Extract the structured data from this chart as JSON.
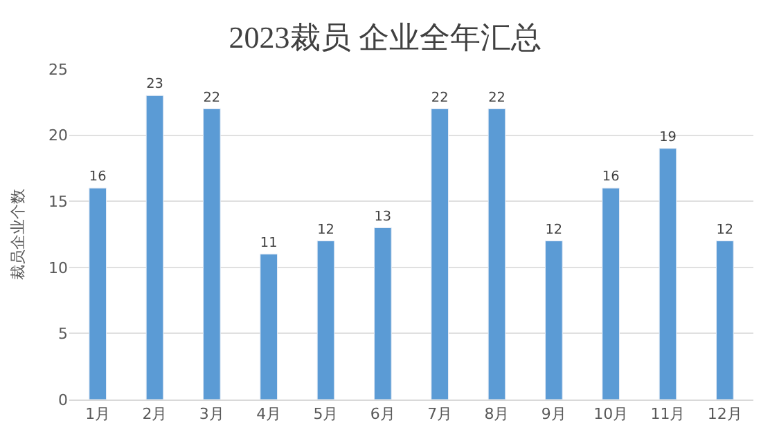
{
  "chart_data": {
    "type": "bar",
    "title": "2023裁员 企业全年汇总",
    "ylabel": "裁员企业个数",
    "categories": [
      "1月",
      "2月",
      "3月",
      "4月",
      "5月",
      "6月",
      "7月",
      "8月",
      "9月",
      "10月",
      "11月",
      "12月"
    ],
    "values": [
      16,
      23,
      22,
      11,
      12,
      13,
      22,
      22,
      12,
      16,
      19,
      12
    ],
    "color": "#5b9bd5",
    "ylim": [
      0,
      25
    ],
    "yticks": [
      0,
      5,
      10,
      15,
      20,
      25
    ],
    "grid": "y",
    "data_labels": true
  }
}
